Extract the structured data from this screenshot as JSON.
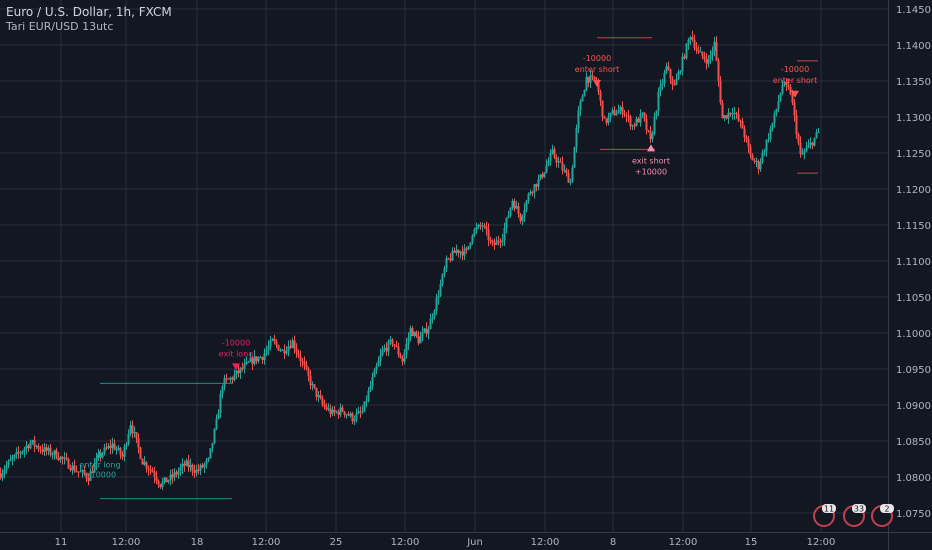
{
  "header": {
    "title": "Euro / U.S. Dollar, 1h, FXCM",
    "indicator": "Tari EUR/USD 13utc"
  },
  "colors": {
    "background": "#131722",
    "grid": "#2a2e39",
    "up": "#26a69a",
    "down": "#ef5350",
    "axis_text": "#b2b5be",
    "long_label": "#26a69a",
    "short_label": "#ff5252",
    "exit_long_label": "#e91e63",
    "exit_short_label": "#f48fb1"
  },
  "badges": [
    "11",
    "33",
    "2"
  ],
  "chart_data": {
    "type": "candlestick",
    "title": "Euro / U.S. Dollar, 1h, FXCM",
    "x_ticks": [
      "11",
      "12:00",
      "18",
      "12:00",
      "25",
      "12:00",
      "Jun",
      "12:00",
      "8",
      "12:00",
      "15",
      "12:00"
    ],
    "y_ticks": [
      "1.1450",
      "1.1400",
      "1.1350",
      "1.1300",
      "1.1250",
      "1.1200",
      "1.1150",
      "1.1100",
      "1.1050",
      "1.1000",
      "1.0950",
      "1.0900",
      "1.0850",
      "1.0800",
      "1.0750"
    ],
    "ylim": [
      1.0735,
      1.1455
    ],
    "price_path": [
      [
        0,
        1.0805
      ],
      [
        10,
        1.0822
      ],
      [
        30,
        1.0848
      ],
      [
        42,
        1.0838
      ],
      [
        55,
        1.0832
      ],
      [
        75,
        1.081
      ],
      [
        88,
        1.08
      ],
      [
        100,
        1.0832
      ],
      [
        112,
        1.0845
      ],
      [
        122,
        1.0828
      ],
      [
        130,
        1.0875
      ],
      [
        142,
        1.0822
      ],
      [
        152,
        1.0808
      ],
      [
        160,
        1.079
      ],
      [
        172,
        1.08
      ],
      [
        185,
        1.0818
      ],
      [
        197,
        1.0808
      ],
      [
        208,
        1.0822
      ],
      [
        216,
        1.0875
      ],
      [
        222,
        1.093
      ],
      [
        232,
        1.0938
      ],
      [
        240,
        1.0948
      ],
      [
        252,
        1.0962
      ],
      [
        262,
        1.0968
      ],
      [
        272,
        1.0988
      ],
      [
        282,
        1.0975
      ],
      [
        292,
        1.0988
      ],
      [
        302,
        1.0958
      ],
      [
        312,
        1.0925
      ],
      [
        322,
        1.09
      ],
      [
        332,
        1.0888
      ],
      [
        342,
        1.0893
      ],
      [
        352,
        1.0882
      ],
      [
        362,
        1.089
      ],
      [
        372,
        1.0935
      ],
      [
        382,
        1.0975
      ],
      [
        392,
        1.0988
      ],
      [
        402,
        1.0962
      ],
      [
        410,
        1.1005
      ],
      [
        418,
        1.099
      ],
      [
        428,
        1.1008
      ],
      [
        436,
        1.1045
      ],
      [
        446,
        1.1098
      ],
      [
        456,
        1.1115
      ],
      [
        466,
        1.1112
      ],
      [
        472,
        1.114
      ],
      [
        482,
        1.115
      ],
      [
        492,
        1.112
      ],
      [
        502,
        1.1135
      ],
      [
        512,
        1.1185
      ],
      [
        520,
        1.116
      ],
      [
        530,
        1.1198
      ],
      [
        540,
        1.1215
      ],
      [
        552,
        1.125
      ],
      [
        562,
        1.1228
      ],
      [
        570,
        1.121
      ],
      [
        578,
        1.1305
      ],
      [
        586,
        1.1355
      ],
      [
        596,
        1.1348
      ],
      [
        604,
        1.1292
      ],
      [
        612,
        1.1305
      ],
      [
        622,
        1.131
      ],
      [
        632,
        1.1288
      ],
      [
        642,
        1.1302
      ],
      [
        650,
        1.1265
      ],
      [
        658,
        1.133
      ],
      [
        666,
        1.1368
      ],
      [
        674,
        1.1342
      ],
      [
        682,
        1.1378
      ],
      [
        690,
        1.1415
      ],
      [
        698,
        1.1388
      ],
      [
        708,
        1.1378
      ],
      [
        714,
        1.1402
      ],
      [
        722,
        1.1298
      ],
      [
        732,
        1.131
      ],
      [
        742,
        1.1285
      ],
      [
        750,
        1.1245
      ],
      [
        758,
        1.1232
      ],
      [
        766,
        1.1265
      ],
      [
        774,
        1.13
      ],
      [
        782,
        1.1345
      ],
      [
        790,
        1.1335
      ],
      [
        800,
        1.1245
      ],
      [
        810,
        1.1262
      ],
      [
        818,
        1.1278
      ]
    ],
    "trades": [
      {
        "type": "entry",
        "direction": "long",
        "label": "enter long",
        "amount": "+10000",
        "price": 1.083
      },
      {
        "type": "exit",
        "direction": "long",
        "label": "exit long",
        "amount": "-10000",
        "price": 1.0955
      },
      {
        "type": "entry",
        "direction": "short",
        "label": "enter short",
        "amount": "-10000",
        "price": 1.135
      },
      {
        "type": "exit",
        "direction": "short",
        "label": "exit short",
        "amount": "+10000",
        "price": 1.1255
      },
      {
        "type": "entry",
        "direction": "short",
        "label": "enter short",
        "amount": "-10000",
        "price": 1.1335
      }
    ],
    "levels": [
      {
        "color": "#26a69a",
        "price": 1.093
      },
      {
        "color": "#26a69a",
        "price": 1.077
      },
      {
        "color": "#ef5350",
        "price": 1.141
      },
      {
        "color": "#ef5350",
        "price": 1.1255
      },
      {
        "color": "#ef5350",
        "price": 1.1378
      },
      {
        "color": "#ef5350",
        "price": 1.1222
      }
    ]
  }
}
